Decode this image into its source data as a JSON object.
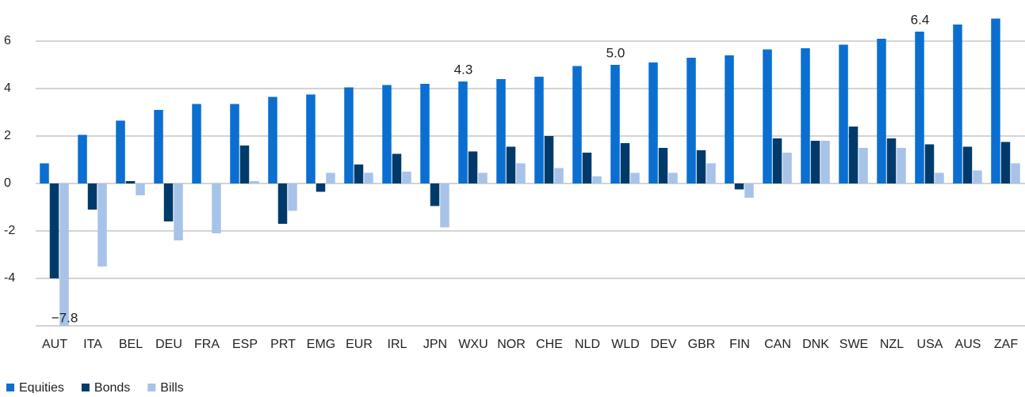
{
  "chart_data": {
    "type": "bar",
    "categories": [
      "AUT",
      "ITA",
      "BEL",
      "DEU",
      "FRA",
      "ESP",
      "PRT",
      "EMG",
      "EUR",
      "IRL",
      "JPN",
      "WXU",
      "NOR",
      "CHE",
      "NLD",
      "WLD",
      "DEV",
      "GBR",
      "FIN",
      "CAN",
      "DNK",
      "SWE",
      "NZL",
      "USA",
      "AUS",
      "ZAF"
    ],
    "series": [
      {
        "name": "Equities",
        "color": "#0a6fd0",
        "values": [
          0.85,
          2.05,
          2.65,
          3.1,
          3.35,
          3.35,
          3.65,
          3.75,
          4.05,
          4.15,
          4.2,
          4.3,
          4.4,
          4.5,
          4.95,
          5.0,
          5.1,
          5.3,
          5.4,
          5.65,
          5.7,
          5.85,
          6.1,
          6.4,
          6.7,
          6.95
        ],
        "value_labels": [
          null,
          null,
          null,
          null,
          null,
          null,
          null,
          null,
          null,
          null,
          null,
          "4.3",
          null,
          null,
          null,
          "5.0",
          null,
          null,
          null,
          null,
          null,
          null,
          null,
          "6.4",
          null,
          null
        ]
      },
      {
        "name": "Bonds",
        "color": "#003a6b",
        "values": [
          -4.0,
          -1.1,
          0.1,
          -1.6,
          0,
          1.6,
          -1.7,
          -0.35,
          0.8,
          1.25,
          -0.95,
          1.35,
          1.55,
          2.0,
          1.3,
          1.7,
          1.5,
          1.4,
          -0.25,
          1.9,
          1.8,
          2.4,
          1.9,
          1.65,
          1.55,
          1.75
        ]
      },
      {
        "name": "Bills",
        "color": "#a8c3e8",
        "values": [
          -7.8,
          -3.5,
          -0.5,
          -2.4,
          -2.1,
          0.1,
          -1.15,
          0.45,
          0.45,
          0.5,
          -1.85,
          0.45,
          0.85,
          0.65,
          0.3,
          0.45,
          0.45,
          0.85,
          -0.6,
          1.3,
          1.8,
          1.5,
          1.5,
          0.45,
          0.55,
          0.85
        ],
        "value_labels": [
          "−7.8",
          null,
          null,
          null,
          null,
          null,
          null,
          null,
          null,
          null,
          null,
          null,
          null,
          null,
          null,
          null,
          null,
          null,
          null,
          null,
          null,
          null,
          null,
          null,
          null,
          null
        ]
      }
    ],
    "ylim": [
      -6,
      7.5
    ],
    "yticks": [
      -4,
      -2,
      0,
      2,
      4,
      6
    ],
    "grid": true,
    "legend": "bottom-left"
  }
}
